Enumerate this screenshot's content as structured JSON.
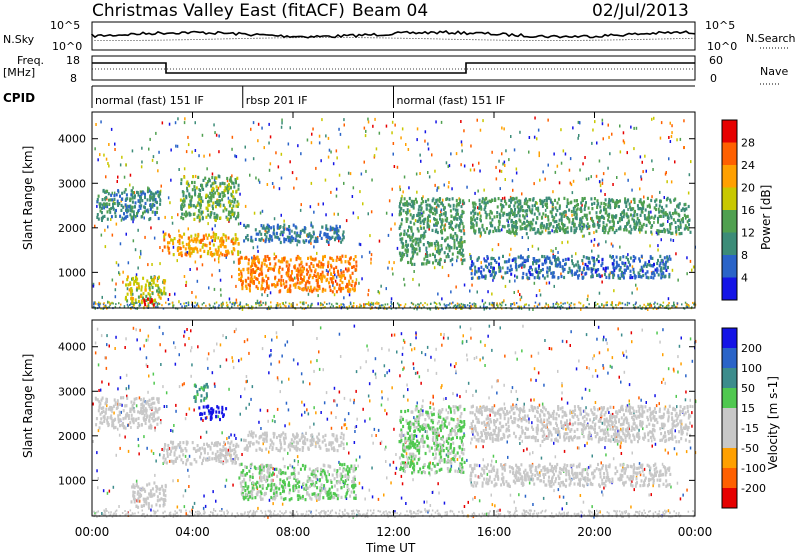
{
  "header": {
    "title": "Christmas Valley East (fitACF)",
    "beam": "Beam 04",
    "date": "02/Jul/2013"
  },
  "noise_panel": {
    "left_label": "N.Sky",
    "right_label": "N.Search",
    "left_ticks": [
      "10^5",
      "10^0"
    ],
    "right_ticks": [
      "10^5",
      "10^0"
    ]
  },
  "freq_panel": {
    "left_label_1": "Freq.",
    "left_label_2": "[MHz]",
    "left_ticks": [
      "18",
      "8"
    ],
    "right_ticks": [
      "60",
      "0"
    ],
    "right_label": "Nave"
  },
  "cpid": {
    "label": "CPID",
    "segments": [
      {
        "start_h": 0,
        "end_h": 6,
        "text": "normal (fast) 151 IF"
      },
      {
        "start_h": 6,
        "end_h": 12,
        "text": "rbsp 201 IF"
      },
      {
        "start_h": 12,
        "end_h": 24,
        "text": "normal (fast) 151 IF"
      }
    ]
  },
  "time_axis": {
    "label": "Time UT",
    "ticks": [
      "00:00",
      "04:00",
      "08:00",
      "12:00",
      "16:00",
      "20:00",
      "00:00"
    ]
  },
  "colors": {
    "power": [
      "#1414e6",
      "#2a64c8",
      "#3c8c78",
      "#50a050",
      "#c8c800",
      "#ffa000",
      "#ff6000",
      "#e60000"
    ],
    "velocity": [
      "#e60000",
      "#ff6000",
      "#ffa000",
      "#c8c8c8",
      "#c8c8c8",
      "#50c850",
      "#3c8c8c",
      "#2a64c8",
      "#1414e6"
    ]
  },
  "chart_data": [
    {
      "type": "heatmap",
      "title": "Power",
      "xlabel": "Time UT",
      "ylabel": "Slant Range [km]",
      "xlim": [
        0,
        24
      ],
      "ylim": [
        200,
        4600
      ],
      "yticks": [
        "4000",
        "3000",
        "2000",
        "1000"
      ],
      "colorbar": {
        "label": "Power [dB]",
        "ticks": [
          "28",
          "24",
          "20",
          "16",
          "12",
          "8",
          "4"
        ],
        "range": [
          0,
          32
        ]
      },
      "features": [
        {
          "t0": 0.1,
          "t1": 2.7,
          "r0": 2200,
          "r1": 2900,
          "value": 10
        },
        {
          "t0": 1.3,
          "t1": 2.9,
          "r0": 350,
          "r1": 950,
          "value": 18
        },
        {
          "t0": 2.0,
          "t1": 2.5,
          "r0": 300,
          "r1": 450,
          "value": 28
        },
        {
          "t0": 2.8,
          "t1": 5.8,
          "r0": 1400,
          "r1": 1900,
          "value": 22
        },
        {
          "t0": 3.5,
          "t1": 5.8,
          "r0": 2200,
          "r1": 3200,
          "value": 14
        },
        {
          "t0": 5.8,
          "t1": 10.5,
          "r0": 600,
          "r1": 1400,
          "value": 24
        },
        {
          "t0": 6.0,
          "t1": 10.0,
          "r0": 1700,
          "r1": 2100,
          "value": 8
        },
        {
          "t0": 12.2,
          "t1": 14.8,
          "r0": 1200,
          "r1": 2700,
          "value": 12
        },
        {
          "t0": 15.0,
          "t1": 23.8,
          "r0": 1900,
          "r1": 2700,
          "value": 12
        },
        {
          "t0": 15.0,
          "t1": 23.0,
          "r0": 900,
          "r1": 1400,
          "value": 7
        }
      ]
    },
    {
      "type": "heatmap",
      "title": "Velocity",
      "xlabel": "Time UT",
      "ylabel": "Slant Range [km]",
      "xlim": [
        0,
        24
      ],
      "ylim": [
        200,
        4600
      ],
      "yticks": [
        "4000",
        "3000",
        "2000",
        "1000"
      ],
      "colorbar": {
        "label": "Velocity [m s-1]",
        "ticks": [
          "200",
          "100",
          "50",
          "15",
          "-15",
          "-50",
          "-100",
          "-200"
        ],
        "range": [
          -250,
          250
        ]
      },
      "features": [
        {
          "t0": 0.1,
          "t1": 2.7,
          "r0": 2200,
          "r1": 2900,
          "value": 0
        },
        {
          "t0": 1.5,
          "t1": 2.9,
          "r0": 400,
          "r1": 1000,
          "value": 0
        },
        {
          "t0": 2.8,
          "t1": 5.8,
          "r0": 1400,
          "r1": 1900,
          "value": 0
        },
        {
          "t0": 4.2,
          "t1": 5.3,
          "r0": 2400,
          "r1": 2700,
          "value": 220
        },
        {
          "t0": 4.0,
          "t1": 4.6,
          "r0": 2800,
          "r1": 3200,
          "value": 90
        },
        {
          "t0": 5.8,
          "t1": 10.5,
          "r0": 600,
          "r1": 1400,
          "value": 30
        },
        {
          "t0": 6.0,
          "t1": 10.0,
          "r0": 1700,
          "r1": 2100,
          "value": 0
        },
        {
          "t0": 12.2,
          "t1": 14.8,
          "r0": 1200,
          "r1": 2700,
          "value": 30
        },
        {
          "t0": 15.0,
          "t1": 23.8,
          "r0": 1900,
          "r1": 2700,
          "value": 0
        },
        {
          "t0": 15.0,
          "t1": 23.0,
          "r0": 900,
          "r1": 1400,
          "value": 0
        }
      ]
    }
  ]
}
